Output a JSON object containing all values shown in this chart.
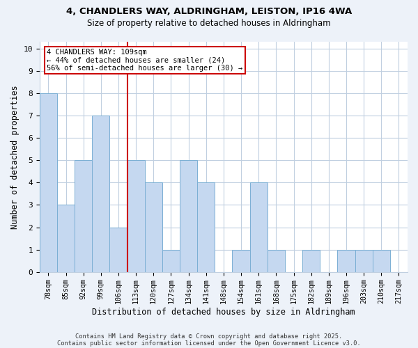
{
  "title1": "4, CHANDLERS WAY, ALDRINGHAM, LEISTON, IP16 4WA",
  "title2": "Size of property relative to detached houses in Aldringham",
  "xlabel": "Distribution of detached houses by size in Aldringham",
  "ylabel": "Number of detached properties",
  "categories": [
    "78sqm",
    "85sqm",
    "92sqm",
    "99sqm",
    "106sqm",
    "113sqm",
    "120sqm",
    "127sqm",
    "134sqm",
    "141sqm",
    "148sqm",
    "154sqm",
    "161sqm",
    "168sqm",
    "175sqm",
    "182sqm",
    "189sqm",
    "196sqm",
    "203sqm",
    "210sqm",
    "217sqm"
  ],
  "values": [
    8,
    3,
    5,
    7,
    2,
    5,
    4,
    1,
    5,
    4,
    0,
    1,
    4,
    1,
    0,
    1,
    0,
    1,
    1,
    1,
    0
  ],
  "bar_color": "#c5d8f0",
  "bar_edge_color": "#7bafd4",
  "vline_x_idx": 4.5,
  "vline_color": "#cc0000",
  "annotation_line1": "4 CHANDLERS WAY: 109sqm",
  "annotation_line2": "← 44% of detached houses are smaller (24)",
  "annotation_line3": "56% of semi-detached houses are larger (30) →",
  "annotation_box_color": "#ffffff",
  "annotation_box_edge": "#cc0000",
  "ylim": [
    0,
    10.3
  ],
  "yticks": [
    0,
    1,
    2,
    3,
    4,
    5,
    6,
    7,
    8,
    9,
    10
  ],
  "footer1": "Contains HM Land Registry data © Crown copyright and database right 2025.",
  "footer2": "Contains public sector information licensed under the Open Government Licence v3.0.",
  "bg_color": "#edf2f9",
  "plot_bg_color": "#ffffff",
  "grid_color": "#c0cfe0",
  "title1_fontsize": 9.5,
  "title2_fontsize": 8.5
}
